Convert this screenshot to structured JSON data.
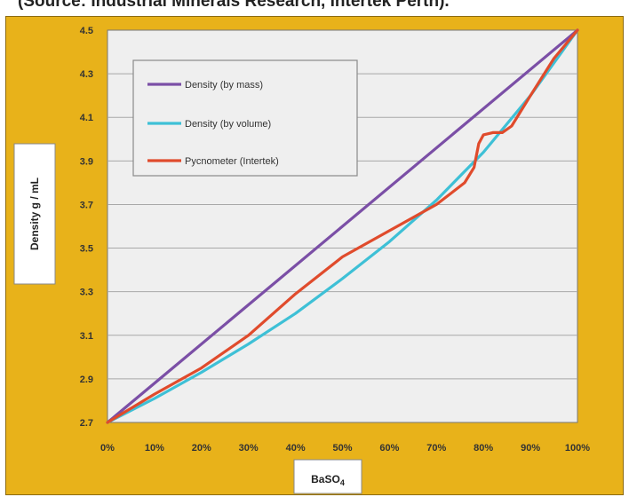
{
  "caption": "(Source: Industrial Minerals Research, Intertek Perth).",
  "colors": {
    "frame": "#e8b21a",
    "plot_bg": "#efefef",
    "grid": "#a8a8a8"
  },
  "chart_data": {
    "type": "line",
    "title": "",
    "xlabel": "BaSO",
    "xlabel_subscript": "4",
    "ylabel": "Density g / mL",
    "xlim": [
      0,
      100
    ],
    "ylim": [
      2.7,
      4.5
    ],
    "x_ticks": [
      "0%",
      "10%",
      "20%",
      "30%",
      "40%",
      "50%",
      "60%",
      "70%",
      "80%",
      "90%",
      "100%"
    ],
    "y_ticks": [
      "2.7",
      "2.9",
      "3.1",
      "3.3",
      "3.5",
      "3.7",
      "3.9",
      "4.1",
      "4.3",
      "4.5"
    ],
    "grid": true,
    "legend_position": "top-left",
    "series": [
      {
        "name": "Density (by mass)",
        "color": "#7b4fa6",
        "x": [
          0,
          100
        ],
        "y": [
          2.7,
          4.5
        ]
      },
      {
        "name": "Density (by volume)",
        "color": "#3ec0d6",
        "x": [
          0,
          10,
          20,
          30,
          40,
          50,
          60,
          70,
          80,
          90,
          100
        ],
        "y": [
          2.7,
          2.81,
          2.93,
          3.06,
          3.2,
          3.36,
          3.53,
          3.72,
          3.94,
          4.2,
          4.5
        ]
      },
      {
        "name": "Pycnometer (Intertek)",
        "color": "#e04b2c",
        "x": [
          0,
          10,
          20,
          30,
          40,
          50,
          60,
          70,
          76,
          78,
          79,
          80,
          82,
          84,
          86,
          90,
          95,
          100
        ],
        "y": [
          2.7,
          2.83,
          2.95,
          3.1,
          3.29,
          3.46,
          3.58,
          3.7,
          3.8,
          3.87,
          3.98,
          4.02,
          4.03,
          4.03,
          4.06,
          4.2,
          4.37,
          4.5
        ]
      }
    ]
  }
}
